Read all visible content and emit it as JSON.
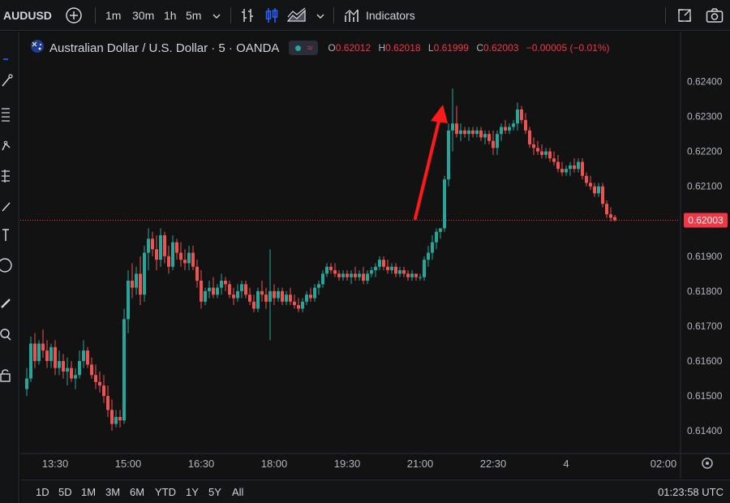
{
  "toolbar": {
    "symbol": "AUDUSD",
    "timeframes": [
      "1m",
      "30m",
      "1h",
      "5m"
    ],
    "active_timeframe": "5m",
    "indicators_label": "Indicators"
  },
  "legend": {
    "title": "Australian Dollar / U.S. Dollar · 5 · OANDA",
    "open_key": "O",
    "open": "0.62012",
    "high_key": "H",
    "high": "0.62018",
    "low_key": "L",
    "low": "0.61999",
    "close_key": "C",
    "close": "0.62003",
    "change": "−0.00005 (−0.01%)"
  },
  "bottom": {
    "ranges": [
      "1D",
      "5D",
      "1M",
      "3M",
      "6M",
      "YTD",
      "1Y",
      "5Y",
      "All"
    ],
    "clock": "01:23:58 UTC"
  },
  "colors": {
    "up": "#26a69a",
    "down": "#ef5350",
    "price_line": "#f23645",
    "arrow": "#ff1a1a"
  },
  "chart_data": {
    "type": "candlestick",
    "title": "Australian Dollar / U.S. Dollar · 5 · OANDA",
    "y_ticks": [
      0.614,
      0.615,
      0.616,
      0.617,
      0.618,
      0.619,
      0.62,
      0.621,
      0.622,
      0.623,
      0.624
    ],
    "y_tick_labels": [
      "0.61400",
      "0.61500",
      "0.61600",
      "0.61700",
      "0.61800",
      "0.61900",
      "0.62000",
      "0.62100",
      "0.62200",
      "0.62300",
      "0.62400"
    ],
    "ylim": [
      0.6134,
      0.6245
    ],
    "x_ticks": [
      "13:30",
      "15:00",
      "16:30",
      "18:00",
      "19:30",
      "21:00",
      "22:30",
      "4",
      "02:00"
    ],
    "x_tick_bar_index": [
      7,
      25,
      43,
      61,
      79,
      97,
      115,
      133,
      157
    ],
    "last_price": 0.62003,
    "last_price_label": "0.62003",
    "grid": false,
    "annotation": "red upward arrow before the breakout",
    "candles_ohlc": [
      [
        0.6152,
        0.6158,
        0.615,
        0.6155
      ],
      [
        0.6155,
        0.6167,
        0.6154,
        0.6165
      ],
      [
        0.6165,
        0.6168,
        0.6158,
        0.616
      ],
      [
        0.616,
        0.6166,
        0.6159,
        0.6165
      ],
      [
        0.6165,
        0.6169,
        0.6161,
        0.6163
      ],
      [
        0.6163,
        0.6166,
        0.6158,
        0.616
      ],
      [
        0.616,
        0.6165,
        0.6158,
        0.6164
      ],
      [
        0.6164,
        0.6166,
        0.6156,
        0.6158
      ],
      [
        0.6158,
        0.6163,
        0.6156,
        0.616
      ],
      [
        0.616,
        0.6162,
        0.6155,
        0.6157
      ],
      [
        0.6157,
        0.6161,
        0.6153,
        0.6158
      ],
      [
        0.6158,
        0.616,
        0.6154,
        0.6155
      ],
      [
        0.6155,
        0.6158,
        0.6152,
        0.6156
      ],
      [
        0.6156,
        0.6163,
        0.6155,
        0.616
      ],
      [
        0.616,
        0.6166,
        0.6158,
        0.6163
      ],
      [
        0.6163,
        0.6164,
        0.6158,
        0.6159
      ],
      [
        0.6159,
        0.6161,
        0.6155,
        0.6156
      ],
      [
        0.6156,
        0.6159,
        0.6152,
        0.6154
      ],
      [
        0.6154,
        0.6157,
        0.6151,
        0.6153
      ],
      [
        0.6153,
        0.6156,
        0.6148,
        0.615
      ],
      [
        0.615,
        0.6153,
        0.6144,
        0.6146
      ],
      [
        0.6146,
        0.6149,
        0.614,
        0.6142
      ],
      [
        0.6142,
        0.6146,
        0.6141,
        0.6144
      ],
      [
        0.6144,
        0.6146,
        0.6141,
        0.6143
      ],
      [
        0.6143,
        0.6175,
        0.6142,
        0.6172
      ],
      [
        0.6172,
        0.6186,
        0.6168,
        0.6183
      ],
      [
        0.6183,
        0.6188,
        0.6178,
        0.6181
      ],
      [
        0.6181,
        0.6187,
        0.6179,
        0.6185
      ],
      [
        0.6185,
        0.619,
        0.6176,
        0.6179
      ],
      [
        0.6179,
        0.6193,
        0.6177,
        0.6191
      ],
      [
        0.6191,
        0.6198,
        0.6186,
        0.6195
      ],
      [
        0.6195,
        0.6197,
        0.619,
        0.6192
      ],
      [
        0.6192,
        0.6196,
        0.6186,
        0.6189
      ],
      [
        0.6189,
        0.6198,
        0.6187,
        0.6196
      ],
      [
        0.6196,
        0.6197,
        0.6188,
        0.619
      ],
      [
        0.619,
        0.6193,
        0.6185,
        0.6187
      ],
      [
        0.6187,
        0.6196,
        0.6186,
        0.6194
      ],
      [
        0.6194,
        0.6195,
        0.6189,
        0.6191
      ],
      [
        0.6191,
        0.6194,
        0.6187,
        0.6189
      ],
      [
        0.6189,
        0.6192,
        0.6186,
        0.6188
      ],
      [
        0.6188,
        0.6193,
        0.6186,
        0.6191
      ],
      [
        0.6191,
        0.6193,
        0.6186,
        0.6187
      ],
      [
        0.6187,
        0.6189,
        0.6181,
        0.6183
      ],
      [
        0.6183,
        0.6186,
        0.6175,
        0.6177
      ],
      [
        0.6177,
        0.6181,
        0.6176,
        0.618
      ],
      [
        0.618,
        0.6183,
        0.6178,
        0.6181
      ],
      [
        0.6181,
        0.6184,
        0.6178,
        0.6179
      ],
      [
        0.6179,
        0.6182,
        0.6178,
        0.6181
      ],
      [
        0.6181,
        0.6185,
        0.6179,
        0.6183
      ],
      [
        0.6183,
        0.6184,
        0.618,
        0.6182
      ],
      [
        0.6182,
        0.6183,
        0.6178,
        0.6179
      ],
      [
        0.6179,
        0.6181,
        0.6176,
        0.6178
      ],
      [
        0.6178,
        0.6182,
        0.6177,
        0.618
      ],
      [
        0.618,
        0.6183,
        0.6178,
        0.6182
      ],
      [
        0.6182,
        0.6183,
        0.6178,
        0.6179
      ],
      [
        0.6179,
        0.6181,
        0.6176,
        0.6177
      ],
      [
        0.6177,
        0.6179,
        0.6174,
        0.6175
      ],
      [
        0.6175,
        0.6181,
        0.6174,
        0.618
      ],
      [
        0.618,
        0.6183,
        0.6177,
        0.6179
      ],
      [
        0.6179,
        0.6181,
        0.6175,
        0.6177
      ],
      [
        0.6177,
        0.6192,
        0.6166,
        0.618
      ],
      [
        0.618,
        0.6182,
        0.6176,
        0.6178
      ],
      [
        0.6178,
        0.6181,
        0.6177,
        0.618
      ],
      [
        0.618,
        0.6181,
        0.6176,
        0.6177
      ],
      [
        0.6177,
        0.618,
        0.6176,
        0.6179
      ],
      [
        0.6179,
        0.6181,
        0.6176,
        0.6177
      ],
      [
        0.6177,
        0.6179,
        0.6175,
        0.6176
      ],
      [
        0.6176,
        0.6178,
        0.6174,
        0.6175
      ],
      [
        0.6175,
        0.6178,
        0.6174,
        0.6177
      ],
      [
        0.6177,
        0.618,
        0.6176,
        0.6179
      ],
      [
        0.6179,
        0.6181,
        0.6177,
        0.6178
      ],
      [
        0.6178,
        0.6182,
        0.6177,
        0.6181
      ],
      [
        0.6181,
        0.6183,
        0.6179,
        0.6182
      ],
      [
        0.6182,
        0.6186,
        0.6181,
        0.6185
      ],
      [
        0.6185,
        0.6188,
        0.6184,
        0.6187
      ],
      [
        0.6187,
        0.6188,
        0.6185,
        0.6186
      ],
      [
        0.6186,
        0.6188,
        0.6184,
        0.6185
      ],
      [
        0.6185,
        0.6186,
        0.6183,
        0.6184
      ],
      [
        0.6184,
        0.6186,
        0.6183,
        0.6185
      ],
      [
        0.6185,
        0.6186,
        0.6183,
        0.6184
      ],
      [
        0.6184,
        0.6186,
        0.6182,
        0.6185
      ],
      [
        0.6185,
        0.6187,
        0.6183,
        0.6184
      ],
      [
        0.6184,
        0.6186,
        0.6183,
        0.6185
      ],
      [
        0.6185,
        0.6187,
        0.6182,
        0.6183
      ],
      [
        0.6183,
        0.6186,
        0.6182,
        0.6185
      ],
      [
        0.6185,
        0.6187,
        0.6184,
        0.6186
      ],
      [
        0.6186,
        0.6188,
        0.6184,
        0.6187
      ],
      [
        0.6187,
        0.619,
        0.6186,
        0.6189
      ],
      [
        0.6189,
        0.619,
        0.6186,
        0.6187
      ],
      [
        0.6187,
        0.6189,
        0.6185,
        0.6186
      ],
      [
        0.6186,
        0.6188,
        0.6185,
        0.6187
      ],
      [
        0.6187,
        0.6188,
        0.6184,
        0.6185
      ],
      [
        0.6185,
        0.6187,
        0.6184,
        0.6186
      ],
      [
        0.6186,
        0.6187,
        0.6184,
        0.6185
      ],
      [
        0.6185,
        0.6186,
        0.6183,
        0.6184
      ],
      [
        0.6184,
        0.6186,
        0.6183,
        0.6185
      ],
      [
        0.6185,
        0.6185,
        0.6183,
        0.6184
      ],
      [
        0.6184,
        0.6185,
        0.6183,
        0.6184
      ],
      [
        0.6184,
        0.619,
        0.6183,
        0.6189
      ],
      [
        0.6189,
        0.6193,
        0.6187,
        0.6191
      ],
      [
        0.6191,
        0.6196,
        0.6189,
        0.6194
      ],
      [
        0.6194,
        0.6198,
        0.6192,
        0.6197
      ],
      [
        0.6197,
        0.6198,
        0.6195,
        0.6198
      ],
      [
        0.6198,
        0.6213,
        0.6197,
        0.6212
      ],
      [
        0.6212,
        0.6228,
        0.621,
        0.6226
      ],
      [
        0.6226,
        0.6238,
        0.622,
        0.6228
      ],
      [
        0.6228,
        0.6233,
        0.6224,
        0.6225
      ],
      [
        0.6225,
        0.6228,
        0.6223,
        0.6226
      ],
      [
        0.6226,
        0.6227,
        0.6224,
        0.6225
      ],
      [
        0.6225,
        0.6227,
        0.6223,
        0.6226
      ],
      [
        0.6226,
        0.6227,
        0.6224,
        0.6225
      ],
      [
        0.6225,
        0.6227,
        0.6224,
        0.6226
      ],
      [
        0.6226,
        0.6227,
        0.6223,
        0.6224
      ],
      [
        0.6224,
        0.6226,
        0.6222,
        0.6225
      ],
      [
        0.6225,
        0.6226,
        0.6222,
        0.6223
      ],
      [
        0.6223,
        0.6226,
        0.6219,
        0.6221
      ],
      [
        0.6221,
        0.6226,
        0.6219,
        0.6225
      ],
      [
        0.6225,
        0.6228,
        0.6223,
        0.6227
      ],
      [
        0.6227,
        0.6229,
        0.6225,
        0.6226
      ],
      [
        0.6226,
        0.6228,
        0.6225,
        0.6227
      ],
      [
        0.6227,
        0.6229,
        0.6226,
        0.6228
      ],
      [
        0.6228,
        0.6234,
        0.6226,
        0.6232
      ],
      [
        0.6232,
        0.6233,
        0.6228,
        0.6229
      ],
      [
        0.6229,
        0.6231,
        0.6225,
        0.6226
      ],
      [
        0.6226,
        0.6227,
        0.6221,
        0.6222
      ],
      [
        0.6222,
        0.6224,
        0.6219,
        0.6221
      ],
      [
        0.6221,
        0.6223,
        0.6219,
        0.622
      ],
      [
        0.622,
        0.6222,
        0.6218,
        0.6219
      ],
      [
        0.6219,
        0.6221,
        0.6218,
        0.622
      ],
      [
        0.622,
        0.6221,
        0.6217,
        0.6218
      ],
      [
        0.6218,
        0.622,
        0.6216,
        0.6217
      ],
      [
        0.6217,
        0.6219,
        0.6214,
        0.6215
      ],
      [
        0.6215,
        0.6217,
        0.6213,
        0.6214
      ],
      [
        0.6214,
        0.6216,
        0.6213,
        0.6215
      ],
      [
        0.6215,
        0.6217,
        0.6213,
        0.6216
      ],
      [
        0.6216,
        0.6218,
        0.6214,
        0.6215
      ],
      [
        0.6215,
        0.6218,
        0.6214,
        0.6217
      ],
      [
        0.6217,
        0.6218,
        0.6212,
        0.6213
      ],
      [
        0.6213,
        0.6214,
        0.621,
        0.6211
      ],
      [
        0.6211,
        0.6213,
        0.6209,
        0.621
      ],
      [
        0.621,
        0.6211,
        0.6207,
        0.6208
      ],
      [
        0.6208,
        0.6211,
        0.6207,
        0.621
      ],
      [
        0.621,
        0.6211,
        0.6204,
        0.6205
      ],
      [
        0.6205,
        0.6206,
        0.6201,
        0.6202
      ],
      [
        0.6202,
        0.6204,
        0.62,
        0.6201
      ],
      [
        0.62012,
        0.62018,
        0.61999,
        0.62003
      ]
    ]
  }
}
